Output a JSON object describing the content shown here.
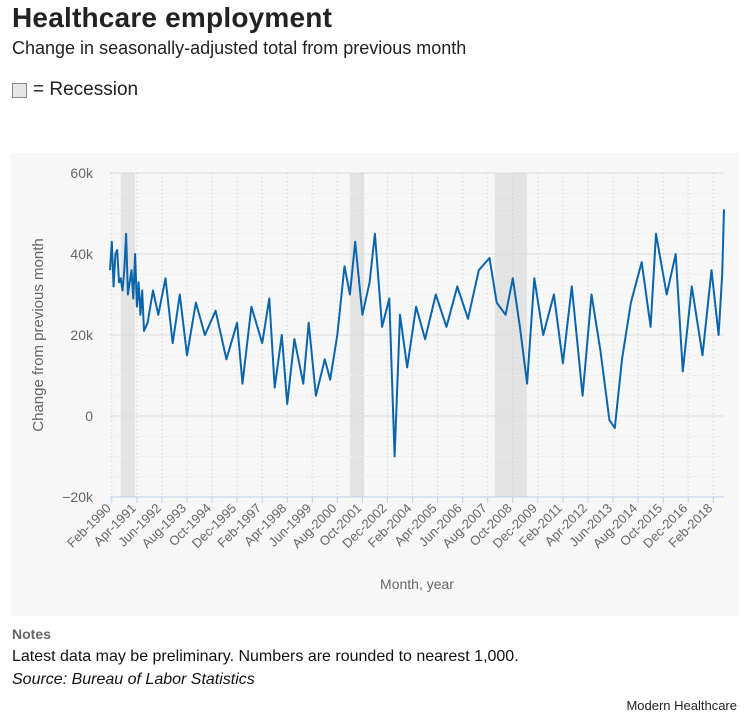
{
  "header": {
    "title": "Healthcare employment",
    "subtitle": "Change in seasonally-adjusted total from previous month"
  },
  "legend": {
    "label": "= Recession"
  },
  "colors": {
    "line": "#0b65ad",
    "recession": "#e3e3e3",
    "grid": "#dcdcdc",
    "panel": "#f7f7f7"
  },
  "chart_data": {
    "type": "line",
    "title": "Healthcare employment",
    "xlabel": "Month, year",
    "ylabel": "Change from previous month",
    "ylim": [
      -20000,
      60000
    ],
    "y_ticks": [
      60000,
      40000,
      20000,
      0,
      -20000
    ],
    "y_tick_labels": [
      "60k",
      "40k",
      "20k",
      "0",
      "−20k"
    ],
    "x_start": "1990-01",
    "x_end": "2018-08",
    "x_tick_labels": [
      "Feb-1990",
      "Apr-1991",
      "Jun-1992",
      "Aug-1993",
      "Oct-1994",
      "Dec-1995",
      "Feb-1997",
      "Apr-1998",
      "Jun-1999",
      "Aug-2000",
      "Oct-2001",
      "Dec-2002",
      "Feb-2004",
      "Apr-2005",
      "Jun-2006",
      "Aug-2007",
      "Oct-2008",
      "Dec-2009",
      "Feb-2011",
      "Apr-2012",
      "Jun-2013",
      "Aug-2014",
      "Oct-2015",
      "Dec-2016",
      "Feb-2018"
    ],
    "recessions": [
      {
        "start": "1990-07",
        "end": "1991-03"
      },
      {
        "start": "2001-03",
        "end": "2001-11"
      },
      {
        "start": "2007-12",
        "end": "2009-06"
      }
    ],
    "series": [
      {
        "name": "Change from previous month",
        "anchors": [
          [
            "1990-01",
            36000
          ],
          [
            "1990-02",
            43000
          ],
          [
            "1990-03",
            32000
          ],
          [
            "1990-04",
            40000
          ],
          [
            "1990-05",
            41000
          ],
          [
            "1990-06",
            33000
          ],
          [
            "1990-07",
            34000
          ],
          [
            "1990-08",
            31000
          ],
          [
            "1990-09",
            36000
          ],
          [
            "1990-10",
            45000
          ],
          [
            "1990-11",
            30000
          ],
          [
            "1990-12",
            33000
          ],
          [
            "1991-01",
            36000
          ],
          [
            "1991-02",
            29000
          ],
          [
            "1991-03",
            40000
          ],
          [
            "1991-04",
            27000
          ],
          [
            "1991-05",
            33000
          ],
          [
            "1991-06",
            25000
          ],
          [
            "1991-07",
            31000
          ],
          [
            "1991-08",
            21000
          ],
          [
            "1991-10",
            23000
          ],
          [
            "1992-01",
            31000
          ],
          [
            "1992-04",
            25000
          ],
          [
            "1992-08",
            34000
          ],
          [
            "1992-12",
            18000
          ],
          [
            "1993-04",
            30000
          ],
          [
            "1993-08",
            15000
          ],
          [
            "1994-01",
            28000
          ],
          [
            "1994-06",
            20000
          ],
          [
            "1994-12",
            26000
          ],
          [
            "1995-06",
            14000
          ],
          [
            "1995-12",
            23000
          ],
          [
            "1996-03",
            8000
          ],
          [
            "1996-08",
            27000
          ],
          [
            "1997-02",
            18000
          ],
          [
            "1997-06",
            29000
          ],
          [
            "1997-09",
            7000
          ],
          [
            "1998-01",
            20000
          ],
          [
            "1998-04",
            3000
          ],
          [
            "1998-08",
            19000
          ],
          [
            "1999-01",
            8000
          ],
          [
            "1999-04",
            23000
          ],
          [
            "1999-08",
            5000
          ],
          [
            "2000-01",
            14000
          ],
          [
            "2000-04",
            9000
          ],
          [
            "2000-08",
            20000
          ],
          [
            "2000-12",
            37000
          ],
          [
            "2001-03",
            30000
          ],
          [
            "2001-06",
            43000
          ],
          [
            "2001-10",
            25000
          ],
          [
            "2002-02",
            33000
          ],
          [
            "2002-05",
            45000
          ],
          [
            "2002-09",
            22000
          ],
          [
            "2003-01",
            29000
          ],
          [
            "2003-04",
            -10000
          ],
          [
            "2003-07",
            25000
          ],
          [
            "2003-11",
            12000
          ],
          [
            "2004-04",
            27000
          ],
          [
            "2004-09",
            19000
          ],
          [
            "2005-03",
            30000
          ],
          [
            "2005-09",
            22000
          ],
          [
            "2006-03",
            32000
          ],
          [
            "2006-09",
            24000
          ],
          [
            "2007-03",
            36000
          ],
          [
            "2007-09",
            39000
          ],
          [
            "2008-01",
            28000
          ],
          [
            "2008-06",
            25000
          ],
          [
            "2008-10",
            34000
          ],
          [
            "2009-02",
            22000
          ],
          [
            "2009-06",
            8000
          ],
          [
            "2009-10",
            34000
          ],
          [
            "2010-03",
            20000
          ],
          [
            "2010-09",
            30000
          ],
          [
            "2011-02",
            13000
          ],
          [
            "2011-07",
            32000
          ],
          [
            "2012-01",
            5000
          ],
          [
            "2012-06",
            30000
          ],
          [
            "2012-11",
            16000
          ],
          [
            "2013-04",
            -1000
          ],
          [
            "2013-07",
            -3000
          ],
          [
            "2013-11",
            14000
          ],
          [
            "2014-04",
            28000
          ],
          [
            "2014-10",
            38000
          ],
          [
            "2015-03",
            22000
          ],
          [
            "2015-06",
            45000
          ],
          [
            "2015-12",
            30000
          ],
          [
            "2016-05",
            40000
          ],
          [
            "2016-09",
            11000
          ],
          [
            "2017-02",
            32000
          ],
          [
            "2017-08",
            15000
          ],
          [
            "2018-01",
            36000
          ],
          [
            "2018-05",
            20000
          ],
          [
            "2018-07",
            35000
          ],
          [
            "2018-08",
            51000
          ]
        ]
      }
    ]
  },
  "notes": {
    "heading": "Notes",
    "text": "Latest data may be preliminary. Numbers are rounded to nearest 1,000.",
    "source": "Source: Bureau of Labor Statistics"
  },
  "brand": "Modern Healthcare"
}
